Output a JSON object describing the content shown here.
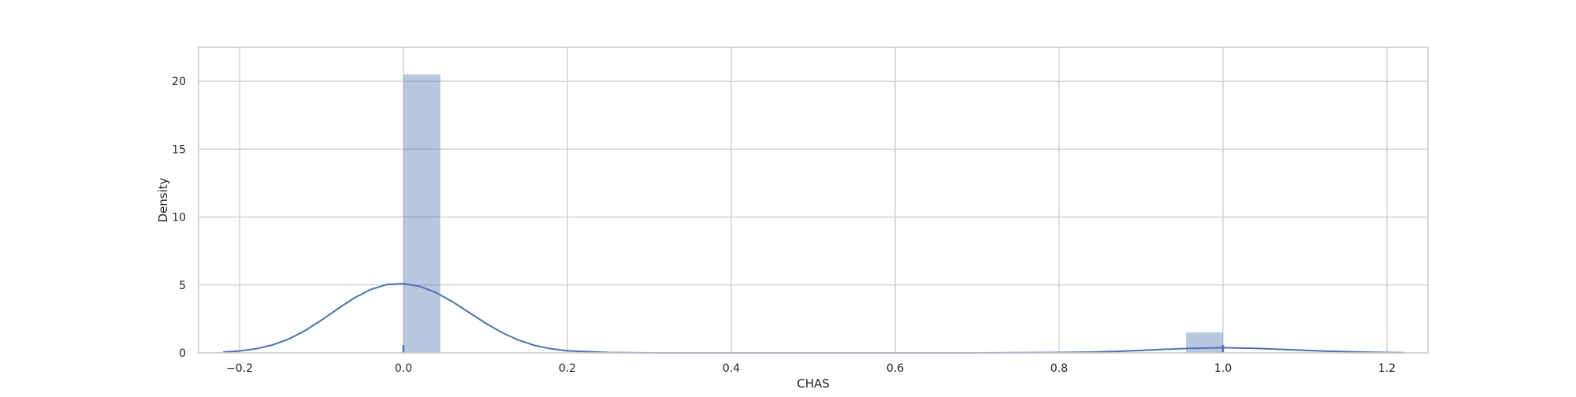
{
  "chart_data": {
    "type": "histogram",
    "title": "",
    "xlabel": "CHAS",
    "ylabel": "Density",
    "xlim": [
      -0.25,
      1.25
    ],
    "ylim": [
      0,
      22.5
    ],
    "grid": true,
    "x_ticks": [
      {
        "value": -0.2,
        "label": "−0.2"
      },
      {
        "value": 0.0,
        "label": "0.0"
      },
      {
        "value": 0.2,
        "label": "0.2"
      },
      {
        "value": 0.4,
        "label": "0.4"
      },
      {
        "value": 0.6,
        "label": "0.6"
      },
      {
        "value": 0.8,
        "label": "0.8"
      },
      {
        "value": 1.0,
        "label": "1.0"
      },
      {
        "value": 1.2,
        "label": "1.2"
      }
    ],
    "y_ticks": [
      {
        "value": 0,
        "label": "0"
      },
      {
        "value": 5,
        "label": "5"
      },
      {
        "value": 10,
        "label": "10"
      },
      {
        "value": 15,
        "label": "15"
      },
      {
        "value": 20,
        "label": "20"
      }
    ],
    "bars": [
      {
        "x0": 0.0,
        "x1": 0.045,
        "density": 20.5
      },
      {
        "x0": 0.955,
        "x1": 1.0,
        "density": 1.5
      }
    ],
    "kde": {
      "x": [
        -0.22,
        -0.2,
        -0.18,
        -0.16,
        -0.14,
        -0.12,
        -0.1,
        -0.08,
        -0.06,
        -0.04,
        -0.02,
        0.0,
        0.02,
        0.04,
        0.06,
        0.08,
        0.1,
        0.12,
        0.14,
        0.16,
        0.18,
        0.2,
        0.25,
        0.3,
        0.4,
        0.5,
        0.6,
        0.7,
        0.75,
        0.8,
        0.84,
        0.88,
        0.92,
        0.96,
        1.0,
        1.04,
        1.08,
        1.12,
        1.16,
        1.2,
        1.22
      ],
      "density": [
        0.06,
        0.14,
        0.3,
        0.58,
        1.02,
        1.64,
        2.41,
        3.25,
        4.05,
        4.67,
        5.04,
        5.1,
        4.9,
        4.43,
        3.76,
        2.98,
        2.2,
        1.5,
        0.95,
        0.55,
        0.3,
        0.15,
        0.03,
        0.0,
        0.0,
        0.0,
        0.0,
        0.0,
        0.01,
        0.03,
        0.06,
        0.13,
        0.24,
        0.33,
        0.38,
        0.33,
        0.24,
        0.14,
        0.07,
        0.03,
        0.01
      ]
    },
    "rug": [
      0.0,
      1.0
    ],
    "colors": {
      "bar_fill": "#4c72b0",
      "bar_opacity": 0.4,
      "kde_line": "#4c72b0",
      "grid": "#cccccc",
      "axes_edge": "#cccccc"
    }
  }
}
